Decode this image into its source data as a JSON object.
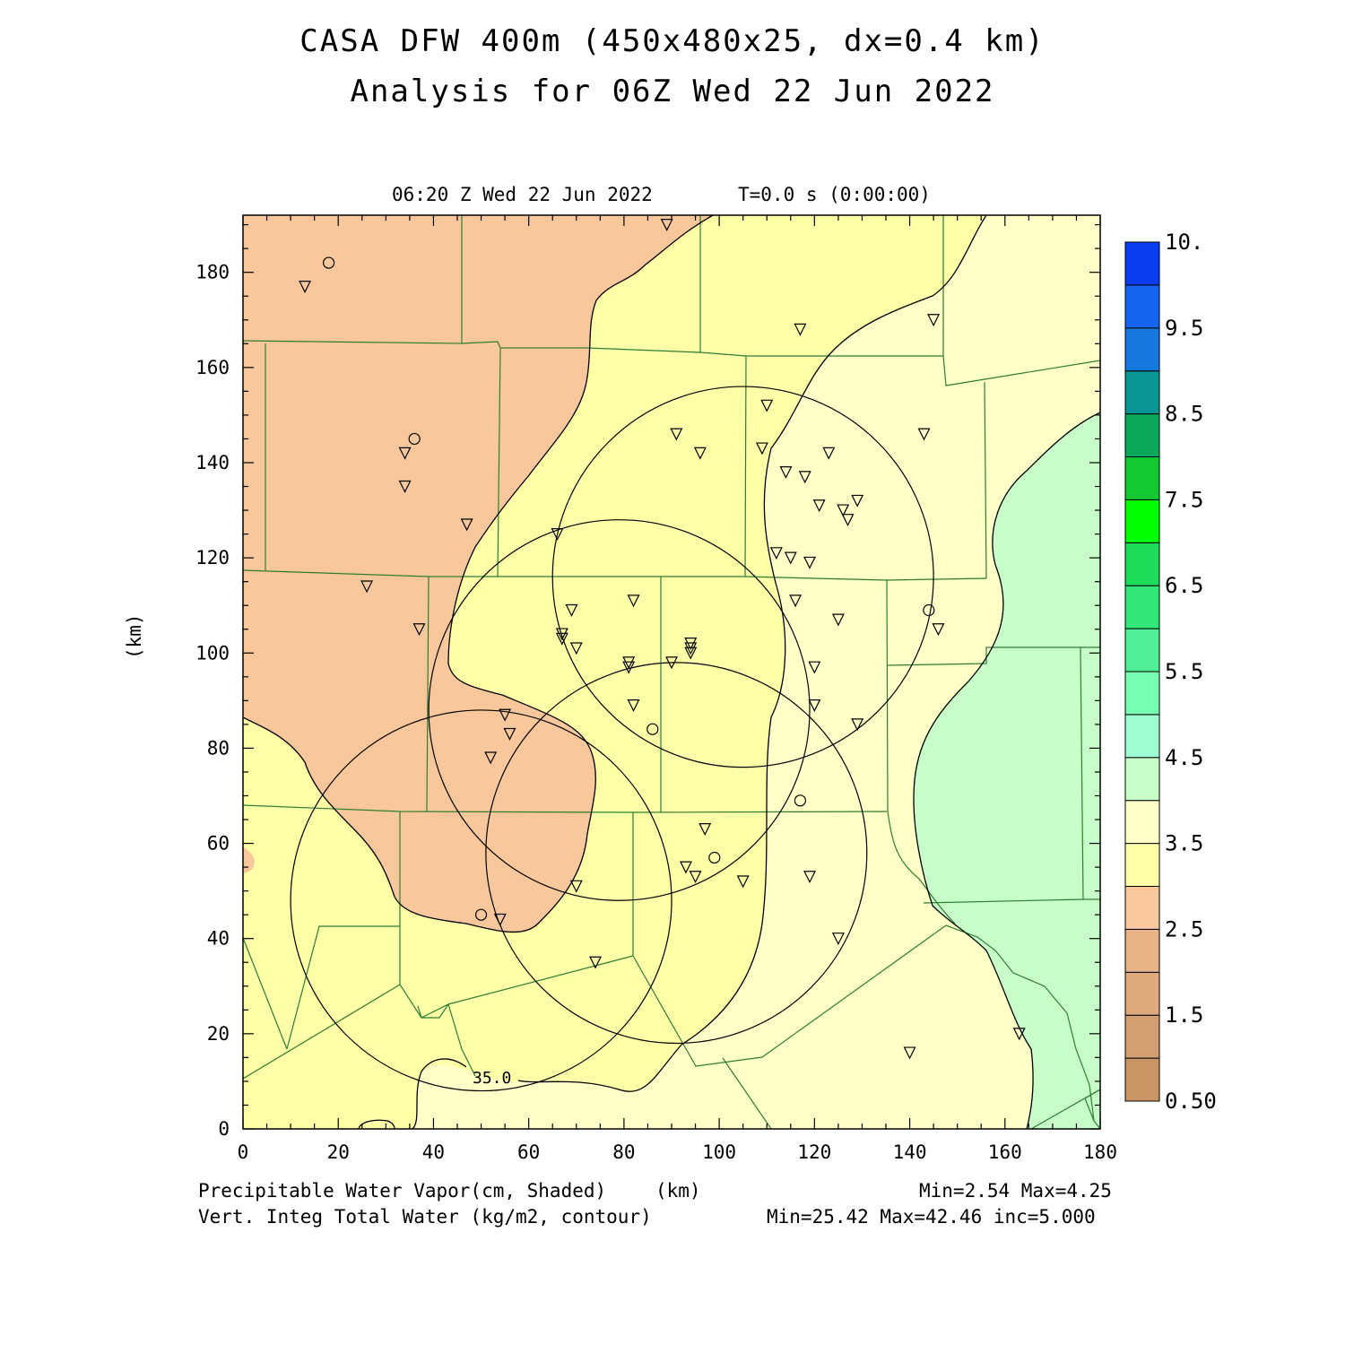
{
  "title_line1": "CASA DFW 400m (450x480x25, dx=0.4 km)",
  "title_line2": "Analysis for 06Z Wed 22 Jun 2022",
  "plot_time": "06:20 Z Wed 22 Jun 2022",
  "plot_elapsed": "T=0.0 s (0:00:00)",
  "y_axis_label": "(km)",
  "x_axis_unit": "(km)",
  "x_ticks": [
    "0",
    "20",
    "40",
    "60",
    "80",
    "100",
    "120",
    "140",
    "160",
    "180"
  ],
  "y_ticks": [
    "0",
    "20",
    "40",
    "60",
    "80",
    "100",
    "120",
    "140",
    "160",
    "180"
  ],
  "contour_label": "35.0",
  "colorbar": {
    "labels": [
      "0.50",
      "1.5",
      "2.5",
      "3.5",
      "4.5",
      "5.5",
      "6.5",
      "7.5",
      "8.5",
      "9.5",
      "10."
    ],
    "colors": [
      "#c89664",
      "#d2a070",
      "#dcaa7c",
      "#e6b486",
      "#f8c89c",
      "#ffffa8",
      "#ffffc8",
      "#c8ffc8",
      "#a0ffd2",
      "#78ffb4",
      "#50f098",
      "#32e678",
      "#1edc5a",
      "#00ff00",
      "#14c832",
      "#0aaa5a",
      "#0a9696",
      "#1478dc",
      "#1464f0",
      "#0a3cf0"
    ]
  },
  "footer": {
    "field1": "Precipitable Water Vapor(cm, Shaded)",
    "field2": "Vert. Integ Total Water (kg/m2, contour)",
    "stats1": "Min=2.54 Max=4.25",
    "stats2": "Min=25.42 Max=42.46 inc=5.000"
  },
  "map_colors": {
    "dry": "#f8c89c",
    "mid": "#ffffa8",
    "moist": "#ffffc8",
    "wet": "#c8ffc8",
    "county_lines": "#2e7d32"
  },
  "radars": [
    {
      "x_km": 50,
      "y_km": 48,
      "range_km": 40
    },
    {
      "x_km": 79,
      "y_km": 88,
      "range_km": 40
    },
    {
      "x_km": 91,
      "y_km": 58,
      "range_km": 40
    },
    {
      "x_km": 105,
      "y_km": 116,
      "range_km": 40
    }
  ],
  "stations_triangle": [
    [
      13,
      177
    ],
    [
      34,
      142
    ],
    [
      34,
      135
    ],
    [
      37,
      105
    ],
    [
      26,
      114
    ],
    [
      47,
      127
    ],
    [
      66,
      125
    ],
    [
      67,
      103
    ],
    [
      67,
      104
    ],
    [
      69,
      109
    ],
    [
      70,
      101
    ],
    [
      82,
      111
    ],
    [
      81,
      98
    ],
    [
      81,
      97
    ],
    [
      82,
      89
    ],
    [
      91,
      146
    ],
    [
      96,
      142
    ],
    [
      94,
      102
    ],
    [
      94,
      101
    ],
    [
      94,
      100
    ],
    [
      90,
      98
    ],
    [
      110,
      152
    ],
    [
      109,
      143
    ],
    [
      114,
      138
    ],
    [
      118,
      137
    ],
    [
      123,
      142
    ],
    [
      121,
      131
    ],
    [
      126,
      130
    ],
    [
      127,
      128
    ],
    [
      129,
      132
    ],
    [
      112,
      121
    ],
    [
      115,
      120
    ],
    [
      119,
      119
    ],
    [
      116,
      111
    ],
    [
      125,
      107
    ],
    [
      120,
      97
    ],
    [
      120,
      89
    ],
    [
      129,
      85
    ],
    [
      143,
      146
    ],
    [
      145,
      170
    ],
    [
      146,
      105
    ],
    [
      117,
      168
    ],
    [
      89,
      190
    ],
    [
      55,
      87
    ],
    [
      56,
      83
    ],
    [
      52,
      78
    ],
    [
      70,
      51
    ],
    [
      54,
      44
    ],
    [
      74,
      35
    ],
    [
      93,
      55
    ],
    [
      95,
      53
    ],
    [
      97,
      63
    ],
    [
      105,
      52
    ],
    [
      119,
      53
    ],
    [
      125,
      40
    ],
    [
      140,
      16
    ],
    [
      163,
      20
    ]
  ],
  "stations_circle": [
    [
      18,
      182
    ],
    [
      36,
      145
    ],
    [
      86,
      84
    ],
    [
      99,
      57
    ],
    [
      117,
      69
    ],
    [
      50,
      45
    ],
    [
      144,
      109
    ]
  ]
}
